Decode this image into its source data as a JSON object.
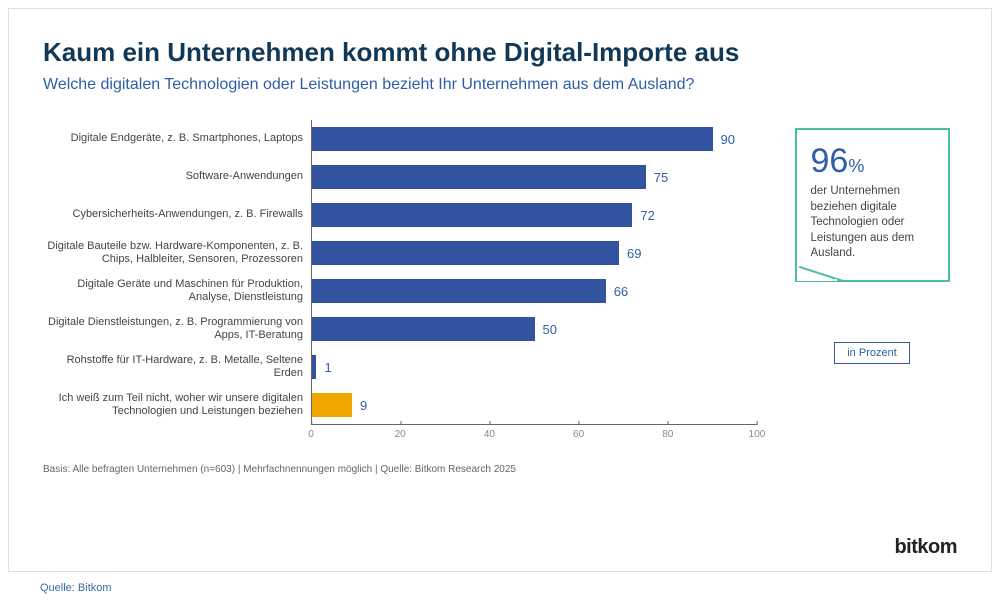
{
  "title": "Kaum ein Unternehmen kommt ohne Digital-Importe aus",
  "subtitle": "Welche digitalen Technologien oder Leistungen bezieht Ihr Unternehmen aus dem Ausland?",
  "chart": {
    "type": "bar-horizontal",
    "x_max": 100,
    "ticks": [
      0,
      20,
      40,
      60,
      80,
      100
    ],
    "bar_color_primary": "#32539f",
    "bar_color_highlight": "#f0a800",
    "value_color": "#2f5ea8",
    "axis_color": "#666666",
    "rows": [
      {
        "label": "Digitale Endgeräte, z. B. Smartphones, Laptops",
        "value": 90,
        "color": "#32539f"
      },
      {
        "label": "Software-Anwendungen",
        "value": 75,
        "color": "#32539f"
      },
      {
        "label": "Cybersicherheits-Anwendungen, z. B. Firewalls",
        "value": 72,
        "color": "#32539f"
      },
      {
        "label": "Digitale Bauteile bzw. Hardware-Komponenten, z. B. Chips, Halbleiter, Sensoren, Prozessoren",
        "value": 69,
        "color": "#32539f"
      },
      {
        "label": "Digitale Geräte und Maschinen für Produktion, Analyse, Dienstleistung",
        "value": 66,
        "color": "#32539f"
      },
      {
        "label": "Digitale Dienstleistungen, z. B. Programmierung von Apps, IT-Beratung",
        "value": 50,
        "color": "#32539f"
      },
      {
        "label": "Rohstoffe für IT-Hardware, z. B. Metalle, Seltene Erden",
        "value": 1,
        "color": "#32539f"
      },
      {
        "label": "Ich weiß zum Teil nicht, woher wir unsere digitalen Technologien und Leistungen beziehen",
        "value": 9,
        "color": "#f0a800"
      }
    ]
  },
  "callout": {
    "big": "96",
    "pct": "%",
    "text": "der Unternehmen beziehen digitale Technologien oder Leistungen aus dem Ausland.",
    "border_color": "#4bbf9a"
  },
  "legend": "in Prozent",
  "footnote": "Basis: Alle befragten Unternehmen (n=603) | Mehrfachnennungen möglich | Quelle: Bitkom Research 2025",
  "logo": "bitkom",
  "source": "Quelle: Bitkom"
}
